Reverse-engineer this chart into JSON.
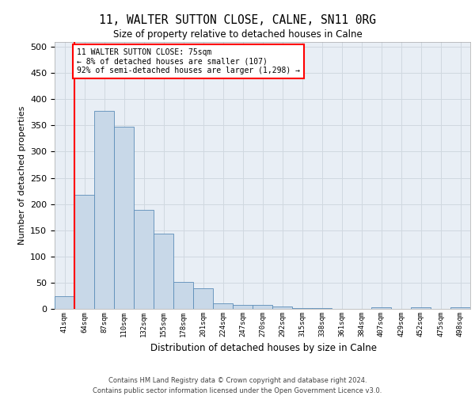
{
  "title1": "11, WALTER SUTTON CLOSE, CALNE, SN11 0RG",
  "title2": "Size of property relative to detached houses in Calne",
  "xlabel": "Distribution of detached houses by size in Calne",
  "ylabel": "Number of detached properties",
  "bar_labels": [
    "41sqm",
    "64sqm",
    "87sqm",
    "110sqm",
    "132sqm",
    "155sqm",
    "178sqm",
    "201sqm",
    "224sqm",
    "247sqm",
    "270sqm",
    "292sqm",
    "315sqm",
    "338sqm",
    "361sqm",
    "384sqm",
    "407sqm",
    "429sqm",
    "452sqm",
    "475sqm",
    "498sqm"
  ],
  "bar_values": [
    24,
    218,
    378,
    347,
    189,
    143,
    52,
    40,
    11,
    7,
    7,
    4,
    2,
    1,
    0,
    0,
    3,
    0,
    3,
    0,
    3
  ],
  "bar_color": "#c8d8e8",
  "bar_edge_color": "#5b8db8",
  "vline_color": "red",
  "vline_x": 0.5,
  "annotation_text": "11 WALTER SUTTON CLOSE: 75sqm\n← 8% of detached houses are smaller (107)\n92% of semi-detached houses are larger (1,298) →",
  "annotation_box_color": "white",
  "annotation_box_edge_color": "red",
  "grid_color": "#d0d8e0",
  "background_color": "#e8eef5",
  "footer_text": "Contains HM Land Registry data © Crown copyright and database right 2024.\nContains public sector information licensed under the Open Government Licence v3.0.",
  "ylim": [
    0,
    510
  ],
  "yticks": [
    0,
    50,
    100,
    150,
    200,
    250,
    300,
    350,
    400,
    450,
    500
  ]
}
